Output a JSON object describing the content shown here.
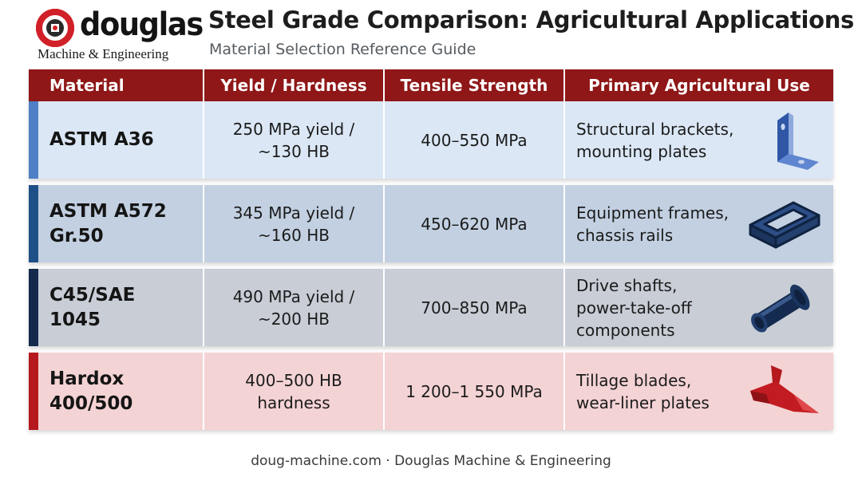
{
  "brand": {
    "name": "douglas",
    "tagline": "Machine & Engineering",
    "icon": "gear-logo-icon",
    "color": "#d12027"
  },
  "header": {
    "title": "Steel Grade Comparison: Agricultural Applications",
    "subtitle": "Material Selection Reference Guide"
  },
  "table": {
    "header_color": "#8f1717",
    "columns": [
      "Material",
      "Yield / Hardness",
      "Tensile Strength",
      "Primary Agricultural Use"
    ],
    "rows": [
      {
        "material": [
          "ASTM A36"
        ],
        "yield": [
          "250 MPa yield /",
          "~130 HB"
        ],
        "tensile": "400–550 MPa",
        "use": [
          "Structural brackets,",
          "mounting plates"
        ],
        "icon": "angle-bracket-icon",
        "accent": "#4f7fc4"
      },
      {
        "material": [
          "ASTM A572",
          "Gr.50"
        ],
        "yield": [
          "345 MPa yield /",
          "~160 HB"
        ],
        "tensile": "450–620 MPa",
        "use": [
          "Equipment frames,",
          "chassis rails"
        ],
        "icon": "rectangular-frame-icon",
        "accent": "#1e4f86"
      },
      {
        "material": [
          "C45/SAE",
          "1045"
        ],
        "yield": [
          "490 MPa yield /",
          "~200 HB"
        ],
        "tensile": "700–850 MPa",
        "use": [
          "Drive shafts,",
          "power-take-off",
          "components"
        ],
        "icon": "drive-shaft-icon",
        "accent": "#132a4c"
      },
      {
        "material": [
          "Hardox",
          "400/500"
        ],
        "yield": [
          "400–500 HB",
          "hardness"
        ],
        "tensile": "1 200–1 550 MPa",
        "use": [
          "Tillage blades,",
          "wear-liner plates"
        ],
        "icon": "plow-blade-icon",
        "accent": "#b5181d"
      }
    ]
  },
  "footer": "doug-machine.com · Douglas Machine & Engineering"
}
